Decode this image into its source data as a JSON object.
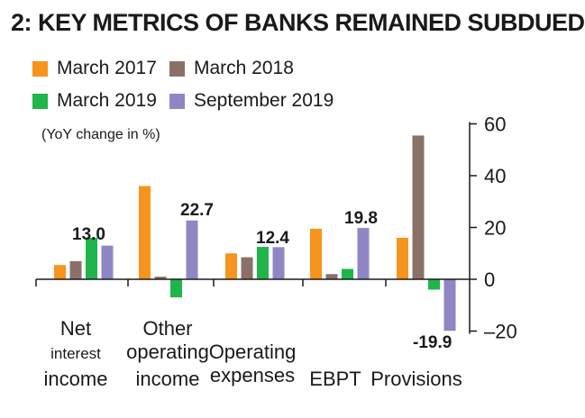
{
  "chart_data": {
    "type": "bar",
    "title": "2: KEY METRICS OF BANKS REMAINED SUBDUED",
    "subtitle": "(YoY change in %)",
    "categories": [
      "Net interest income",
      "Other operating income",
      "Operating expenses",
      "EBPT",
      "Provisions"
    ],
    "category_lines": [
      [
        "Net",
        "interest",
        "income"
      ],
      [
        "Other",
        "operating",
        "income"
      ],
      [
        "Operating",
        "expenses"
      ],
      [
        "EBPT"
      ],
      [
        "Provisions"
      ]
    ],
    "series": [
      {
        "name": "March 2017",
        "color": "#f7941d",
        "values": [
          5.5,
          36,
          10,
          19.5,
          16
        ]
      },
      {
        "name": "March 2018",
        "color": "#8a7168",
        "values": [
          7,
          1,
          8.5,
          2,
          55.5
        ]
      },
      {
        "name": "March 2019",
        "color": "#1fb54a",
        "values": [
          16,
          -7,
          12.5,
          4,
          -4
        ]
      },
      {
        "name": "September 2019",
        "color": "#8f86c4",
        "values": [
          13.0,
          22.7,
          12.4,
          19.8,
          -19.9
        ]
      }
    ],
    "data_labels": [
      {
        "series": 3,
        "category": 0,
        "text": "13.0"
      },
      {
        "series": 3,
        "category": 1,
        "text": "22.7"
      },
      {
        "series": 3,
        "category": 2,
        "text": "12.4"
      },
      {
        "series": 3,
        "category": 3,
        "text": "19.8"
      },
      {
        "series": 3,
        "category": 4,
        "text": "-19.9"
      }
    ],
    "yticks": [
      60,
      40,
      20,
      0,
      -20
    ],
    "ylim": [
      -20,
      60
    ],
    "y_axis_position": "right",
    "grid": false,
    "legend_position": "top"
  }
}
